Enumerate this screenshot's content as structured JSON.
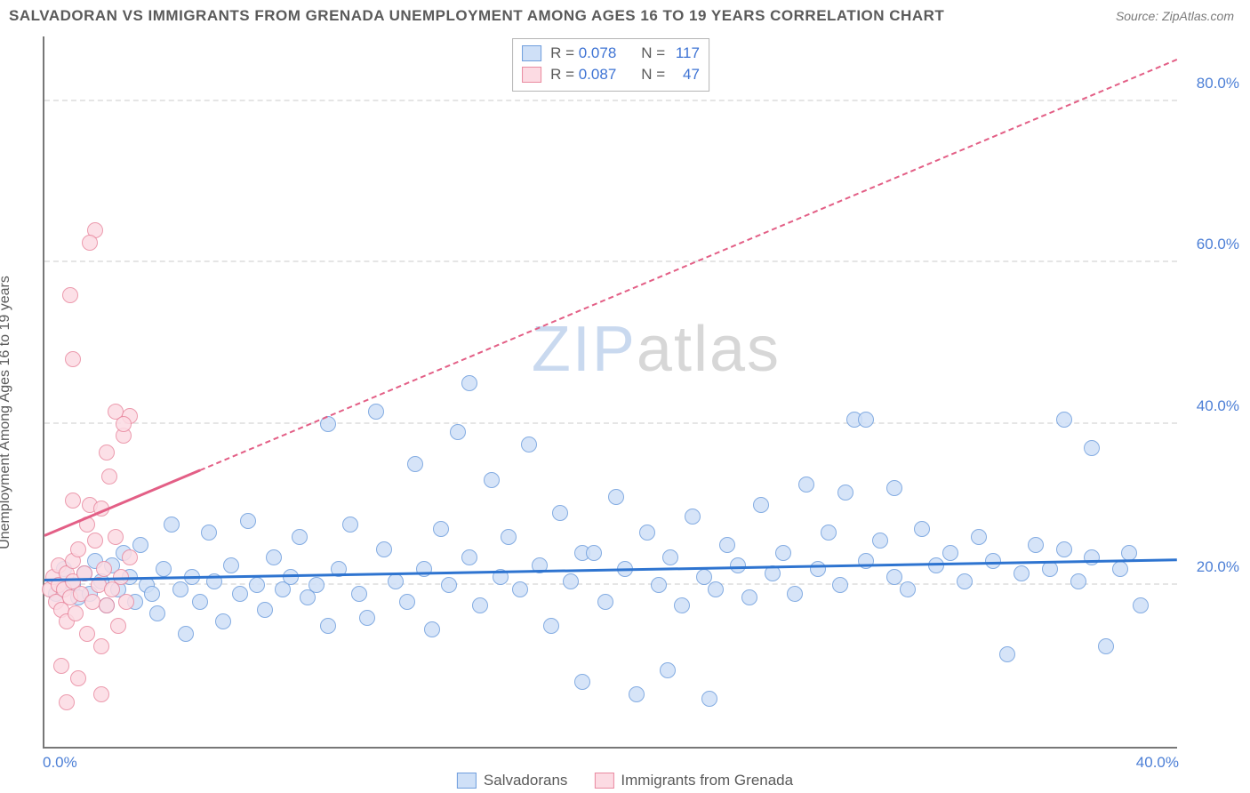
{
  "title": "SALVADORAN VS IMMIGRANTS FROM GRENADA UNEMPLOYMENT AMONG AGES 16 TO 19 YEARS CORRELATION CHART",
  "source": "Source: ZipAtlas.com",
  "y_axis_label": "Unemployment Among Ages 16 to 19 years",
  "watermark": {
    "pre": "ZIP",
    "post": "atlas",
    "color_pre": "#c9d9ef",
    "color_post": "#d7d7d7"
  },
  "chart": {
    "type": "scatter",
    "background": "#ffffff",
    "grid_color": "#e5e5e5",
    "axis_color": "#777777",
    "xlim": [
      0,
      40
    ],
    "ylim": [
      0,
      88
    ],
    "y_ticks": [
      20,
      40,
      60,
      80
    ],
    "y_tick_labels": [
      "20.0%",
      "40.0%",
      "60.0%",
      "80.0%"
    ],
    "x_tick_left": "0.0%",
    "x_tick_right": "40.0%",
    "right_tick_color": "#4c7fd6",
    "marker_radius": 9,
    "marker_border_width": 1.5,
    "series": [
      {
        "name": "Salvadorans",
        "fill": "#cfe0f7",
        "stroke": "#6f9edd",
        "trend_color": "#2e74d0",
        "R": "0.078",
        "N": "117",
        "trend": {
          "x1": 0,
          "y1": 20.5,
          "x2": 40,
          "y2": 23.0,
          "dashed_after_x": null
        },
        "points": [
          [
            0.4,
            19.0
          ],
          [
            0.7,
            22.0
          ],
          [
            1.0,
            20.0
          ],
          [
            1.2,
            18.5
          ],
          [
            1.4,
            21.5
          ],
          [
            1.6,
            19.0
          ],
          [
            1.8,
            23.0
          ],
          [
            2.0,
            20.5
          ],
          [
            2.2,
            17.5
          ],
          [
            2.4,
            22.5
          ],
          [
            2.6,
            19.5
          ],
          [
            2.8,
            24.0
          ],
          [
            3.0,
            21.0
          ],
          [
            3.2,
            18.0
          ],
          [
            3.4,
            25.0
          ],
          [
            3.6,
            20.0
          ],
          [
            3.8,
            19.0
          ],
          [
            4.0,
            16.5
          ],
          [
            4.2,
            22.0
          ],
          [
            4.5,
            27.5
          ],
          [
            4.8,
            19.5
          ],
          [
            5.0,
            14.0
          ],
          [
            5.2,
            21.0
          ],
          [
            5.5,
            18.0
          ],
          [
            5.8,
            26.5
          ],
          [
            6.0,
            20.5
          ],
          [
            6.3,
            15.5
          ],
          [
            6.6,
            22.5
          ],
          [
            6.9,
            19.0
          ],
          [
            7.2,
            28.0
          ],
          [
            7.5,
            20.0
          ],
          [
            7.8,
            17.0
          ],
          [
            8.1,
            23.5
          ],
          [
            8.4,
            19.5
          ],
          [
            8.7,
            21.0
          ],
          [
            9.0,
            26.0
          ],
          [
            9.3,
            18.5
          ],
          [
            9.6,
            20.0
          ],
          [
            10.0,
            40.0
          ],
          [
            10.0,
            15.0
          ],
          [
            10.4,
            22.0
          ],
          [
            10.8,
            27.5
          ],
          [
            11.1,
            19.0
          ],
          [
            11.4,
            16.0
          ],
          [
            11.7,
            41.5
          ],
          [
            12.0,
            24.5
          ],
          [
            12.4,
            20.5
          ],
          [
            12.8,
            18.0
          ],
          [
            13.1,
            35.0
          ],
          [
            13.4,
            22.0
          ],
          [
            13.7,
            14.5
          ],
          [
            14.0,
            27.0
          ],
          [
            14.3,
            20.0
          ],
          [
            14.6,
            39.0
          ],
          [
            15.0,
            45.0
          ],
          [
            15.0,
            23.5
          ],
          [
            15.4,
            17.5
          ],
          [
            15.8,
            33.0
          ],
          [
            16.1,
            21.0
          ],
          [
            16.4,
            26.0
          ],
          [
            16.8,
            19.5
          ],
          [
            17.1,
            37.5
          ],
          [
            17.5,
            22.5
          ],
          [
            17.9,
            15.0
          ],
          [
            18.2,
            29.0
          ],
          [
            18.6,
            20.5
          ],
          [
            19.0,
            8.0
          ],
          [
            19.0,
            24.0
          ],
          [
            19.4,
            24.0
          ],
          [
            19.8,
            18.0
          ],
          [
            20.2,
            31.0
          ],
          [
            20.5,
            22.0
          ],
          [
            20.9,
            6.5
          ],
          [
            21.3,
            26.5
          ],
          [
            21.7,
            20.0
          ],
          [
            22.0,
            9.5
          ],
          [
            22.1,
            23.5
          ],
          [
            22.5,
            17.5
          ],
          [
            22.9,
            28.5
          ],
          [
            23.3,
            21.0
          ],
          [
            23.5,
            6.0
          ],
          [
            23.7,
            19.5
          ],
          [
            24.1,
            25.0
          ],
          [
            24.5,
            22.5
          ],
          [
            24.9,
            18.5
          ],
          [
            25.3,
            30.0
          ],
          [
            25.7,
            21.5
          ],
          [
            26.1,
            24.0
          ],
          [
            26.5,
            19.0
          ],
          [
            26.9,
            32.5
          ],
          [
            27.3,
            22.0
          ],
          [
            27.7,
            26.5
          ],
          [
            28.1,
            20.0
          ],
          [
            28.3,
            31.5
          ],
          [
            28.6,
            40.5
          ],
          [
            29.0,
            40.5
          ],
          [
            29.0,
            23.0
          ],
          [
            29.5,
            25.5
          ],
          [
            30.0,
            21.0
          ],
          [
            30.0,
            32.0
          ],
          [
            30.5,
            19.5
          ],
          [
            31.0,
            27.0
          ],
          [
            31.5,
            22.5
          ],
          [
            32.0,
            24.0
          ],
          [
            32.5,
            20.5
          ],
          [
            33.0,
            26.0
          ],
          [
            33.5,
            23.0
          ],
          [
            34.0,
            11.5
          ],
          [
            34.5,
            21.5
          ],
          [
            35.0,
            25.0
          ],
          [
            35.5,
            22.0
          ],
          [
            36.0,
            40.5
          ],
          [
            36.0,
            24.5
          ],
          [
            36.5,
            20.5
          ],
          [
            37.0,
            37.0
          ],
          [
            37.0,
            23.5
          ],
          [
            37.5,
            12.5
          ],
          [
            38.0,
            22.0
          ],
          [
            38.3,
            24.0
          ],
          [
            38.7,
            17.5
          ]
        ]
      },
      {
        "name": "Immigrants from Grenada",
        "fill": "#fcdbe3",
        "stroke": "#e98aa0",
        "trend_color": "#e35f86",
        "R": "0.087",
        "N": "47",
        "trend": {
          "x1": 0,
          "y1": 26.0,
          "x2": 40,
          "y2": 85.0,
          "dashed_after_x": 5.5
        },
        "points": [
          [
            0.2,
            19.5
          ],
          [
            0.3,
            21.0
          ],
          [
            0.4,
            18.0
          ],
          [
            0.5,
            20.0
          ],
          [
            0.5,
            22.5
          ],
          [
            0.6,
            17.0
          ],
          [
            0.7,
            19.5
          ],
          [
            0.8,
            21.5
          ],
          [
            0.8,
            15.5
          ],
          [
            0.9,
            18.5
          ],
          [
            1.0,
            20.5
          ],
          [
            1.0,
            23.0
          ],
          [
            1.1,
            16.5
          ],
          [
            1.2,
            24.5
          ],
          [
            1.3,
            19.0
          ],
          [
            1.4,
            21.5
          ],
          [
            1.5,
            27.5
          ],
          [
            1.5,
            14.0
          ],
          [
            1.6,
            30.0
          ],
          [
            1.0,
            30.5
          ],
          [
            1.7,
            18.0
          ],
          [
            1.8,
            25.5
          ],
          [
            1.9,
            20.0
          ],
          [
            2.0,
            29.5
          ],
          [
            2.0,
            12.5
          ],
          [
            2.1,
            22.0
          ],
          [
            2.2,
            17.5
          ],
          [
            2.3,
            33.5
          ],
          [
            2.4,
            19.5
          ],
          [
            2.5,
            26.0
          ],
          [
            2.2,
            36.5
          ],
          [
            2.6,
            15.0
          ],
          [
            2.7,
            21.0
          ],
          [
            2.8,
            38.5
          ],
          [
            2.9,
            18.0
          ],
          [
            3.0,
            23.5
          ],
          [
            2.5,
            41.5
          ],
          [
            3.0,
            41.0
          ],
          [
            1.0,
            48.0
          ],
          [
            2.8,
            40.0
          ],
          [
            0.9,
            56.0
          ],
          [
            1.8,
            64.0
          ],
          [
            1.6,
            62.5
          ],
          [
            0.6,
            10.0
          ],
          [
            1.2,
            8.5
          ],
          [
            2.0,
            6.5
          ],
          [
            0.8,
            5.5
          ]
        ]
      }
    ]
  },
  "legend": {
    "series1": "Salvadorans",
    "series2": "Immigrants from Grenada"
  }
}
